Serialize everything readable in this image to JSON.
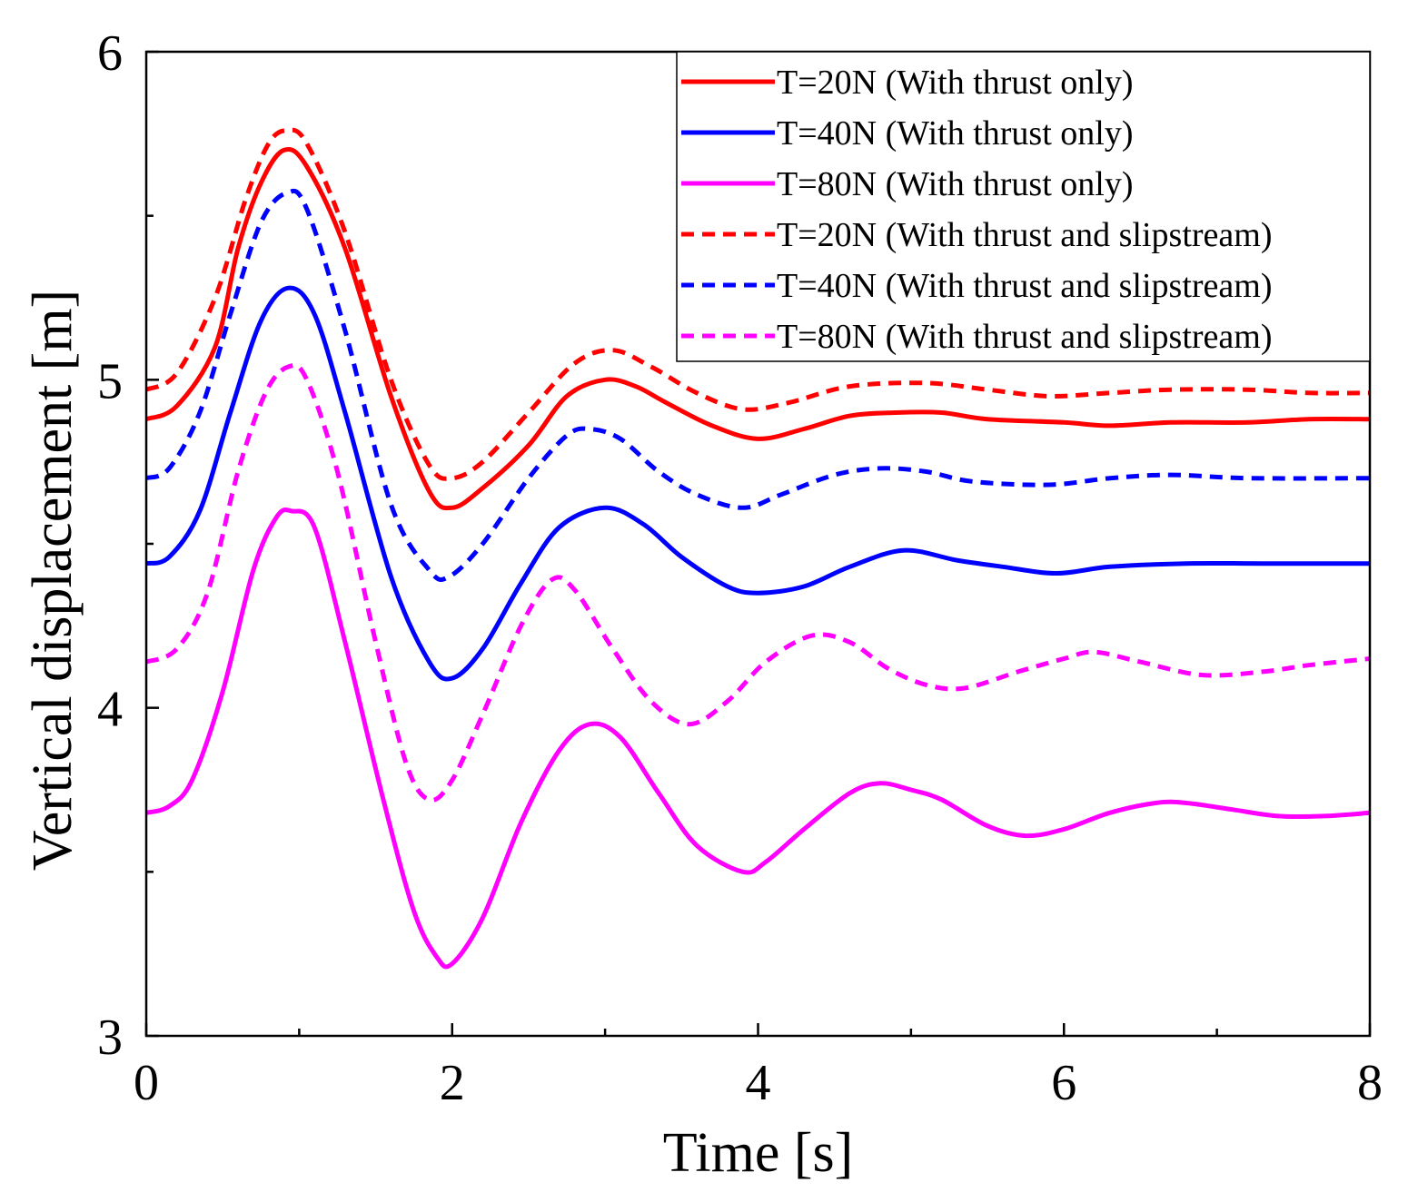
{
  "chart_data": {
    "type": "line",
    "title": "",
    "xlabel": "Time [s]",
    "ylabel": "Vertical displacement [m]",
    "xlim": [
      0,
      8
    ],
    "ylim": [
      3,
      6
    ],
    "xticks": [
      0,
      2,
      4,
      6,
      8
    ],
    "xticks_minor": [
      1,
      3,
      5,
      7
    ],
    "yticks": [
      3,
      4,
      5,
      6
    ],
    "yticks_minor": [
      3.5,
      4.5,
      5.5
    ],
    "xtick_labels": [
      "0",
      "2",
      "4",
      "6",
      "8"
    ],
    "ytick_labels": [
      "3",
      "4",
      "5",
      "6"
    ],
    "grid": false,
    "legend_position": "top-right",
    "series": [
      {
        "name": "T=20N (With thrust only)",
        "color": "#ff0000",
        "style": "solid",
        "points": [
          [
            0,
            4.88
          ],
          [
            0.2,
            4.92
          ],
          [
            0.45,
            5.1
          ],
          [
            0.6,
            5.4
          ],
          [
            0.75,
            5.6
          ],
          [
            0.9,
            5.7
          ],
          [
            1.05,
            5.65
          ],
          [
            1.3,
            5.4
          ],
          [
            1.6,
            4.95
          ],
          [
            1.85,
            4.66
          ],
          [
            2.0,
            4.61
          ],
          [
            2.2,
            4.67
          ],
          [
            2.5,
            4.8
          ],
          [
            2.75,
            4.95
          ],
          [
            3.0,
            5.0
          ],
          [
            3.2,
            4.98
          ],
          [
            3.4,
            4.93
          ],
          [
            3.7,
            4.86
          ],
          [
            4.0,
            4.82
          ],
          [
            4.3,
            4.85
          ],
          [
            4.6,
            4.89
          ],
          [
            4.9,
            4.9
          ],
          [
            5.2,
            4.9
          ],
          [
            5.5,
            4.88
          ],
          [
            6.0,
            4.87
          ],
          [
            6.3,
            4.86
          ],
          [
            6.7,
            4.87
          ],
          [
            7.2,
            4.87
          ],
          [
            7.6,
            4.88
          ],
          [
            8.0,
            4.88
          ]
        ]
      },
      {
        "name": "T=40N (With thrust only)",
        "color": "#0000ff",
        "style": "solid",
        "points": [
          [
            0,
            4.44
          ],
          [
            0.15,
            4.46
          ],
          [
            0.35,
            4.6
          ],
          [
            0.55,
            4.9
          ],
          [
            0.75,
            5.18
          ],
          [
            0.93,
            5.28
          ],
          [
            1.1,
            5.2
          ],
          [
            1.3,
            4.9
          ],
          [
            1.6,
            4.4
          ],
          [
            1.85,
            4.14
          ],
          [
            2.0,
            4.09
          ],
          [
            2.2,
            4.18
          ],
          [
            2.45,
            4.38
          ],
          [
            2.7,
            4.55
          ],
          [
            3.0,
            4.61
          ],
          [
            3.25,
            4.56
          ],
          [
            3.5,
            4.46
          ],
          [
            3.8,
            4.37
          ],
          [
            4.0,
            4.35
          ],
          [
            4.3,
            4.37
          ],
          [
            4.6,
            4.43
          ],
          [
            4.95,
            4.48
          ],
          [
            5.3,
            4.45
          ],
          [
            5.6,
            4.43
          ],
          [
            5.95,
            4.41
          ],
          [
            6.3,
            4.43
          ],
          [
            6.8,
            4.44
          ],
          [
            7.3,
            4.44
          ],
          [
            8.0,
            4.44
          ]
        ]
      },
      {
        "name": "T=80N (With thrust only)",
        "color": "#ff00ff",
        "style": "solid",
        "points": [
          [
            0,
            3.68
          ],
          [
            0.15,
            3.7
          ],
          [
            0.3,
            3.78
          ],
          [
            0.5,
            4.05
          ],
          [
            0.7,
            4.42
          ],
          [
            0.85,
            4.58
          ],
          [
            0.95,
            4.6
          ],
          [
            1.1,
            4.55
          ],
          [
            1.3,
            4.2
          ],
          [
            1.55,
            3.72
          ],
          [
            1.75,
            3.38
          ],
          [
            1.9,
            3.24
          ],
          [
            2.0,
            3.22
          ],
          [
            2.2,
            3.36
          ],
          [
            2.45,
            3.65
          ],
          [
            2.7,
            3.87
          ],
          [
            2.9,
            3.95
          ],
          [
            3.1,
            3.91
          ],
          [
            3.35,
            3.74
          ],
          [
            3.6,
            3.58
          ],
          [
            3.9,
            3.5
          ],
          [
            4.05,
            3.53
          ],
          [
            4.3,
            3.63
          ],
          [
            4.6,
            3.74
          ],
          [
            4.8,
            3.77
          ],
          [
            5.0,
            3.75
          ],
          [
            5.2,
            3.72
          ],
          [
            5.5,
            3.64
          ],
          [
            5.75,
            3.61
          ],
          [
            6.0,
            3.63
          ],
          [
            6.3,
            3.68
          ],
          [
            6.6,
            3.71
          ],
          [
            6.8,
            3.71
          ],
          [
            7.1,
            3.69
          ],
          [
            7.4,
            3.67
          ],
          [
            7.7,
            3.67
          ],
          [
            8.0,
            3.68
          ]
        ]
      },
      {
        "name": "T=20N (With thrust and slipstream)",
        "color": "#ff0000",
        "style": "dashed",
        "points": [
          [
            0,
            4.97
          ],
          [
            0.2,
            5.02
          ],
          [
            0.45,
            5.25
          ],
          [
            0.65,
            5.55
          ],
          [
            0.8,
            5.72
          ],
          [
            0.92,
            5.76
          ],
          [
            1.05,
            5.72
          ],
          [
            1.3,
            5.45
          ],
          [
            1.6,
            5.0
          ],
          [
            1.85,
            4.74
          ],
          [
            2.0,
            4.7
          ],
          [
            2.2,
            4.75
          ],
          [
            2.5,
            4.9
          ],
          [
            2.8,
            5.05
          ],
          [
            3.05,
            5.09
          ],
          [
            3.3,
            5.04
          ],
          [
            3.6,
            4.96
          ],
          [
            3.9,
            4.91
          ],
          [
            4.2,
            4.93
          ],
          [
            4.6,
            4.98
          ],
          [
            5.1,
            4.99
          ],
          [
            5.5,
            4.97
          ],
          [
            5.9,
            4.95
          ],
          [
            6.3,
            4.96
          ],
          [
            6.7,
            4.97
          ],
          [
            7.2,
            4.97
          ],
          [
            7.6,
            4.96
          ],
          [
            8.0,
            4.96
          ]
        ]
      },
      {
        "name": "T=40N (With thrust and slipstream)",
        "color": "#0000ff",
        "style": "dashed",
        "points": [
          [
            0,
            4.7
          ],
          [
            0.15,
            4.73
          ],
          [
            0.35,
            4.9
          ],
          [
            0.55,
            5.2
          ],
          [
            0.75,
            5.48
          ],
          [
            0.92,
            5.57
          ],
          [
            1.05,
            5.52
          ],
          [
            1.3,
            5.15
          ],
          [
            1.6,
            4.62
          ],
          [
            1.85,
            4.42
          ],
          [
            1.98,
            4.4
          ],
          [
            2.2,
            4.5
          ],
          [
            2.5,
            4.7
          ],
          [
            2.75,
            4.83
          ],
          [
            2.9,
            4.85
          ],
          [
            3.1,
            4.82
          ],
          [
            3.35,
            4.72
          ],
          [
            3.6,
            4.65
          ],
          [
            3.9,
            4.61
          ],
          [
            4.15,
            4.65
          ],
          [
            4.5,
            4.71
          ],
          [
            4.8,
            4.73
          ],
          [
            5.1,
            4.72
          ],
          [
            5.4,
            4.69
          ],
          [
            5.9,
            4.68
          ],
          [
            6.3,
            4.7
          ],
          [
            6.7,
            4.71
          ],
          [
            7.2,
            4.7
          ],
          [
            8.0,
            4.7
          ]
        ]
      },
      {
        "name": "T=80N (With thrust and slipstream)",
        "color": "#ff00ff",
        "style": "dashed",
        "points": [
          [
            0,
            4.14
          ],
          [
            0.2,
            4.18
          ],
          [
            0.4,
            4.35
          ],
          [
            0.6,
            4.72
          ],
          [
            0.78,
            4.96
          ],
          [
            0.93,
            5.04
          ],
          [
            1.05,
            5.0
          ],
          [
            1.25,
            4.72
          ],
          [
            1.5,
            4.2
          ],
          [
            1.7,
            3.83
          ],
          [
            1.85,
            3.72
          ],
          [
            2.0,
            3.78
          ],
          [
            2.2,
            3.98
          ],
          [
            2.45,
            4.25
          ],
          [
            2.65,
            4.39
          ],
          [
            2.8,
            4.36
          ],
          [
            3.05,
            4.18
          ],
          [
            3.3,
            4.02
          ],
          [
            3.55,
            3.95
          ],
          [
            3.8,
            4.02
          ],
          [
            4.05,
            4.14
          ],
          [
            4.35,
            4.22
          ],
          [
            4.6,
            4.2
          ],
          [
            4.85,
            4.12
          ],
          [
            5.1,
            4.07
          ],
          [
            5.35,
            4.06
          ],
          [
            5.7,
            4.11
          ],
          [
            6.0,
            4.15
          ],
          [
            6.2,
            4.17
          ],
          [
            6.5,
            4.14
          ],
          [
            6.9,
            4.1
          ],
          [
            7.3,
            4.11
          ],
          [
            7.6,
            4.13
          ],
          [
            8.0,
            4.15
          ]
        ]
      }
    ]
  }
}
